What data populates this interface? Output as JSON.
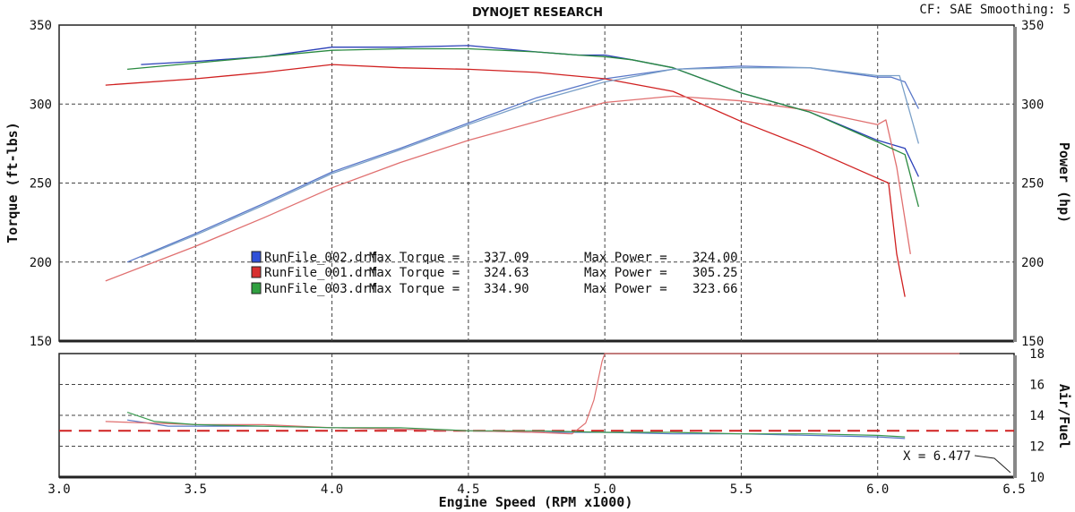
{
  "header": {
    "title": "DYNOJET RESEARCH",
    "info": "CF: SAE  Smoothing: 5"
  },
  "chart_data": [
    {
      "type": "line",
      "name": "torque-power",
      "xlabel": "Engine Speed (RPM x1000)",
      "ylabel": "Torque (ft-lbs)",
      "y2label": "Power (hp)",
      "xlim": [
        3.0,
        6.5
      ],
      "ylim": [
        150,
        350
      ],
      "y2lim": [
        150,
        350
      ],
      "x_ticks": [
        "3.0",
        "3.5",
        "4.0",
        "4.5",
        "5.0",
        "5.5",
        "6.0",
        "6.5"
      ],
      "y_ticks": [
        "150",
        "200",
        "250",
        "300",
        "350"
      ],
      "y2_ticks": [
        "150",
        "200",
        "250",
        "300",
        "350"
      ],
      "grid": true,
      "legend": [
        {
          "file": "RunFile_002.drf",
          "torque_label": "Max Torque =",
          "torque": "337.09",
          "power_label": "Max Power =",
          "power": "324.00",
          "color": "#3050d8"
        },
        {
          "file": "RunFile_001.drf",
          "torque_label": "Max Torque =",
          "torque": "324.63",
          "power_label": "Max Power =",
          "power": "305.25",
          "color": "#d83030"
        },
        {
          "file": "RunFile_003.drf",
          "torque_label": "Max Torque =",
          "torque": "334.90",
          "power_label": "Max Power =",
          "power": "323.66",
          "color": "#30a040"
        }
      ],
      "series": [
        {
          "name": "RunFile_002.drf",
          "kind": "torque",
          "color": "#2a3fb8",
          "x": [
            3.3,
            3.5,
            3.75,
            4.0,
            4.25,
            4.5,
            4.75,
            4.9,
            5.0,
            5.1,
            5.25,
            5.5,
            5.75,
            6.0,
            6.1,
            6.15
          ],
          "y": [
            325,
            327,
            330,
            336,
            336,
            337,
            333,
            331,
            331,
            328,
            323,
            307,
            295,
            277,
            272,
            254
          ]
        },
        {
          "name": "RunFile_002.drf",
          "kind": "power",
          "color": "#5a78c8",
          "x": [
            3.25,
            3.5,
            3.75,
            4.0,
            4.25,
            4.5,
            4.75,
            5.0,
            5.25,
            5.5,
            5.75,
            6.0,
            6.05,
            6.1,
            6.15
          ],
          "y": [
            200,
            218,
            237,
            257,
            272,
            288,
            304,
            316,
            322,
            324,
            323,
            317,
            317,
            314,
            297
          ]
        },
        {
          "name": "RunFile_001.drf",
          "kind": "torque",
          "color": "#d02020",
          "x": [
            3.17,
            3.5,
            3.75,
            4.0,
            4.25,
            4.5,
            4.75,
            5.0,
            5.25,
            5.5,
            5.75,
            6.0,
            6.04,
            6.07,
            6.1
          ],
          "y": [
            312,
            316,
            320,
            325,
            323,
            322,
            320,
            316,
            308,
            289,
            272,
            253,
            250,
            205,
            178
          ]
        },
        {
          "name": "RunFile_001.drf",
          "kind": "power",
          "color": "#e07070",
          "x": [
            3.17,
            3.5,
            3.75,
            4.0,
            4.25,
            4.5,
            4.75,
            5.0,
            5.25,
            5.5,
            5.75,
            6.0,
            6.03,
            6.07,
            6.12
          ],
          "y": [
            188,
            210,
            228,
            247,
            263,
            277,
            289,
            301,
            305,
            302,
            296,
            287,
            290,
            260,
            205
          ]
        },
        {
          "name": "RunFile_003.drf",
          "kind": "torque",
          "color": "#2a8a40",
          "x": [
            3.25,
            3.5,
            3.75,
            4.0,
            4.25,
            4.5,
            4.75,
            4.9,
            5.0,
            5.1,
            5.25,
            5.5,
            5.75,
            6.0,
            6.1,
            6.15
          ],
          "y": [
            322,
            326,
            330,
            334,
            335,
            335,
            333,
            331,
            330,
            328,
            323,
            307,
            295,
            276,
            268,
            235
          ]
        },
        {
          "name": "RunFile_003.drf",
          "kind": "power",
          "color": "#7aa0c8",
          "x": [
            3.3,
            3.5,
            3.75,
            4.0,
            4.25,
            4.5,
            4.75,
            5.0,
            5.25,
            5.5,
            5.75,
            6.0,
            6.08,
            6.15
          ],
          "y": [
            203,
            217,
            236,
            256,
            271,
            287,
            302,
            314,
            322,
            323,
            323,
            318,
            318,
            275
          ]
        }
      ]
    },
    {
      "type": "line",
      "name": "air-fuel",
      "xlabel": "Engine Speed (RPM x1000)",
      "y2label": "Air/Fuel",
      "xlim": [
        3.0,
        6.5
      ],
      "ylim": [
        10,
        18
      ],
      "y2_ticks": [
        "10",
        "12",
        "14",
        "16",
        "18"
      ],
      "reference_line": 13.0,
      "annotation": "X = 6.477",
      "grid": true,
      "series": [
        {
          "name": "RunFile_002.drf",
          "color": "#5a78c8",
          "x": [
            3.25,
            3.4,
            3.5,
            3.75,
            4.0,
            4.25,
            4.5,
            4.75,
            5.0,
            5.25,
            5.5,
            5.75,
            6.0,
            6.1
          ],
          "y": [
            13.7,
            13.3,
            13.3,
            13.3,
            13.2,
            13.1,
            13.0,
            12.9,
            12.9,
            12.8,
            12.8,
            12.7,
            12.6,
            12.5
          ]
        },
        {
          "name": "RunFile_001.drf",
          "color": "#e07070",
          "x": [
            3.17,
            3.5,
            3.75,
            4.0,
            4.25,
            4.5,
            4.75,
            4.88,
            4.93,
            4.96,
            4.99,
            5.0,
            5.2,
            5.5,
            6.0,
            6.3
          ],
          "y": [
            13.6,
            13.4,
            13.4,
            13.2,
            13.1,
            13.0,
            12.9,
            12.8,
            13.5,
            15.0,
            17.5,
            18,
            18,
            18,
            18,
            18
          ]
        },
        {
          "name": "RunFile_003.drf",
          "color": "#3a9a50",
          "x": [
            3.25,
            3.35,
            3.5,
            3.75,
            4.0,
            4.25,
            4.5,
            4.75,
            5.0,
            5.25,
            5.5,
            5.75,
            6.0,
            6.1
          ],
          "y": [
            14.2,
            13.6,
            13.4,
            13.3,
            13.2,
            13.2,
            13.0,
            13.0,
            12.9,
            12.9,
            12.8,
            12.8,
            12.7,
            12.6
          ]
        }
      ]
    }
  ]
}
